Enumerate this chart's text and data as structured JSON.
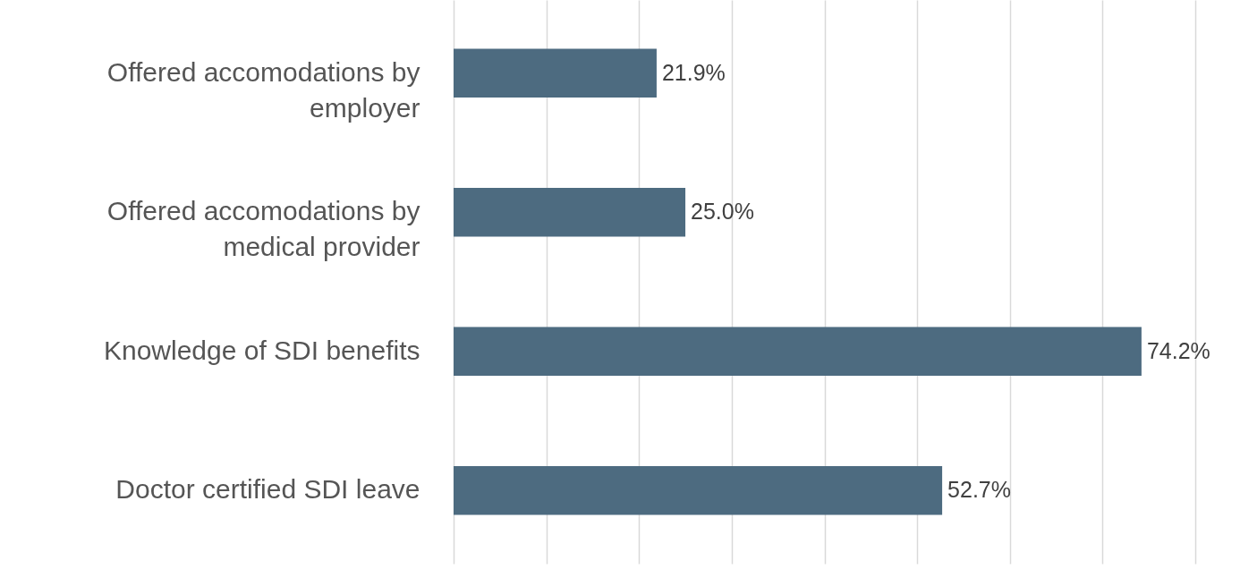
{
  "chart_data": {
    "type": "bar",
    "orientation": "horizontal",
    "categories": [
      "Offered accomodations by employer",
      "Offered accomodations by medical provider",
      "Knowledge of SDI benefits",
      "Doctor certified SDI leave"
    ],
    "values": [
      21.9,
      25.0,
      74.2,
      52.7
    ],
    "value_labels": [
      "21.9%",
      "25.0%",
      "74.2%",
      "52.7%"
    ],
    "color": "#4d6b80",
    "xlim": [
      0,
      80
    ],
    "xticks": [
      {
        "value": 0,
        "label": null
      },
      {
        "value": 10,
        "label": null
      },
      {
        "value": 20,
        "label": null
      },
      {
        "value": 30,
        "label": null
      },
      {
        "value": 40,
        "label": null
      },
      {
        "value": 50,
        "label": null
      },
      {
        "value": 60,
        "label": null
      },
      {
        "value": 70,
        "label": null
      },
      {
        "value": 80,
        "label": null
      }
    ],
    "grid": "x",
    "tick_labels": "y"
  }
}
